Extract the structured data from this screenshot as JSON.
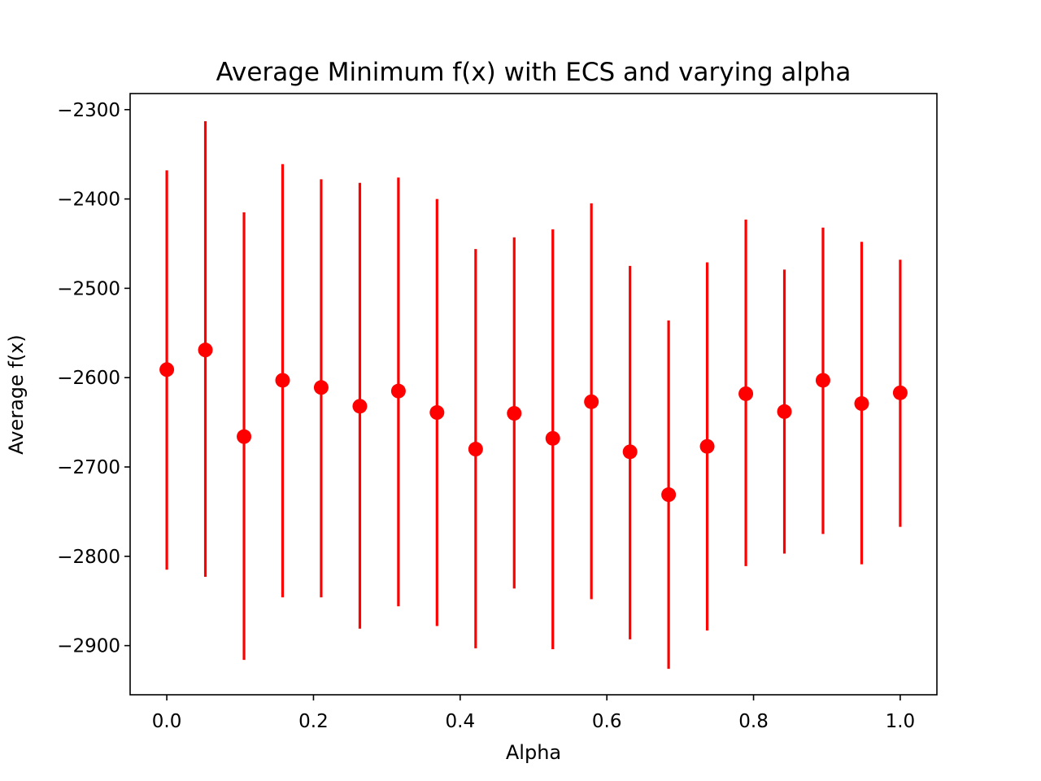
{
  "chart_data": {
    "type": "scatter",
    "title": "Average Minimum f(x) with ECS and varying alpha",
    "xlabel": "Alpha",
    "ylabel": "Average f(x)",
    "xlim": [
      -0.05,
      1.05
    ],
    "ylim": [
      -2955,
      -2282
    ],
    "xticks": [
      0.0,
      0.2,
      0.4,
      0.6,
      0.8,
      1.0
    ],
    "xtick_labels": [
      "0.0",
      "0.2",
      "0.4",
      "0.6",
      "0.8",
      "1.0"
    ],
    "yticks": [
      -2300,
      -2400,
      -2500,
      -2600,
      -2700,
      -2800,
      -2900
    ],
    "ytick_labels": [
      "−2300",
      "−2400",
      "−2500",
      "−2600",
      "−2700",
      "−2800",
      "−2900"
    ],
    "grid": false,
    "marker_color": "#ff0000",
    "errorbar_color": "#ff0000",
    "series": [
      {
        "x": [
          0.0,
          0.0526,
          0.1053,
          0.1579,
          0.2105,
          0.2632,
          0.3158,
          0.3684,
          0.4211,
          0.4737,
          0.5263,
          0.5789,
          0.6316,
          0.6842,
          0.7368,
          0.7895,
          0.8421,
          0.8947,
          0.9474,
          1.0
        ],
        "y": [
          -2591,
          -2569,
          -2666,
          -2603,
          -2611,
          -2632,
          -2615,
          -2639,
          -2680,
          -2640,
          -2668,
          -2627,
          -2683,
          -2731,
          -2677,
          -2618,
          -2638,
          -2603,
          -2629,
          -2617
        ],
        "yerr_upper": [
          -2368,
          -2313,
          -2415,
          -2361,
          -2378,
          -2382,
          -2376,
          -2400,
          -2456,
          -2443,
          -2434,
          -2405,
          -2475,
          -2536,
          -2471,
          -2423,
          -2479,
          -2432,
          -2448,
          -2468
        ],
        "yerr_lower": [
          -2815,
          -2823,
          -2916,
          -2846,
          -2846,
          -2881,
          -2856,
          -2878,
          -2903,
          -2836,
          -2904,
          -2848,
          -2893,
          -2926,
          -2883,
          -2811,
          -2797,
          -2775,
          -2809,
          -2767
        ]
      }
    ]
  }
}
